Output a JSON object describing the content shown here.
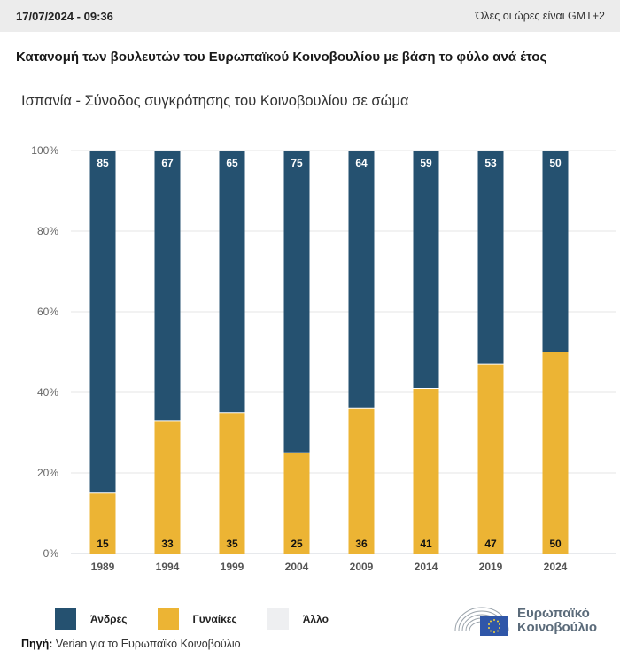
{
  "header": {
    "datetime": "17/07/2024 - 09:36",
    "timezone_note": "Όλες οι ώρες είναι GMT+2"
  },
  "chart_data": {
    "type": "bar",
    "stacked": true,
    "title": "Κατανομή των βουλευτών του Ευρωπαϊκού Κοινοβουλίου με βάση το φύλο ανά έτος",
    "subtitle": "Ισπανία - Σύνοδος συγκρότησης του Κοινοβουλίου σε σώμα",
    "xlabel": "",
    "ylabel": "",
    "ylim": [
      0,
      100
    ],
    "yticks": [
      "0%",
      "20%",
      "40%",
      "60%",
      "80%",
      "100%"
    ],
    "categories": [
      "1989",
      "1994",
      "1999",
      "2004",
      "2009",
      "2014",
      "2019",
      "2024"
    ],
    "series": [
      {
        "name": "Γυναίκες",
        "color": "#ecb434",
        "values": [
          15,
          33,
          35,
          25,
          36,
          41,
          47,
          50
        ]
      },
      {
        "name": "Άνδρες",
        "color": "#255170",
        "values": [
          85,
          67,
          65,
          75,
          64,
          59,
          53,
          50
        ]
      },
      {
        "name": "Άλλο",
        "color": "#eeeff1",
        "values": [
          0,
          0,
          0,
          0,
          0,
          0,
          0,
          0
        ]
      }
    ],
    "grid": true,
    "legend_position": "bottom-left"
  },
  "legend": [
    {
      "label": "Άνδρες",
      "color": "#255170"
    },
    {
      "label": "Γυναίκες",
      "color": "#ecb434"
    },
    {
      "label": "Άλλο",
      "color": "#eeeff1"
    }
  ],
  "source": {
    "prefix": "Πηγή:",
    "text": " Verian για το Ευρωπαϊκό Κοινοβούλιο"
  },
  "logo": {
    "line1": "Ευρωπαϊκό",
    "line2": "Κοινοβούλιο"
  }
}
